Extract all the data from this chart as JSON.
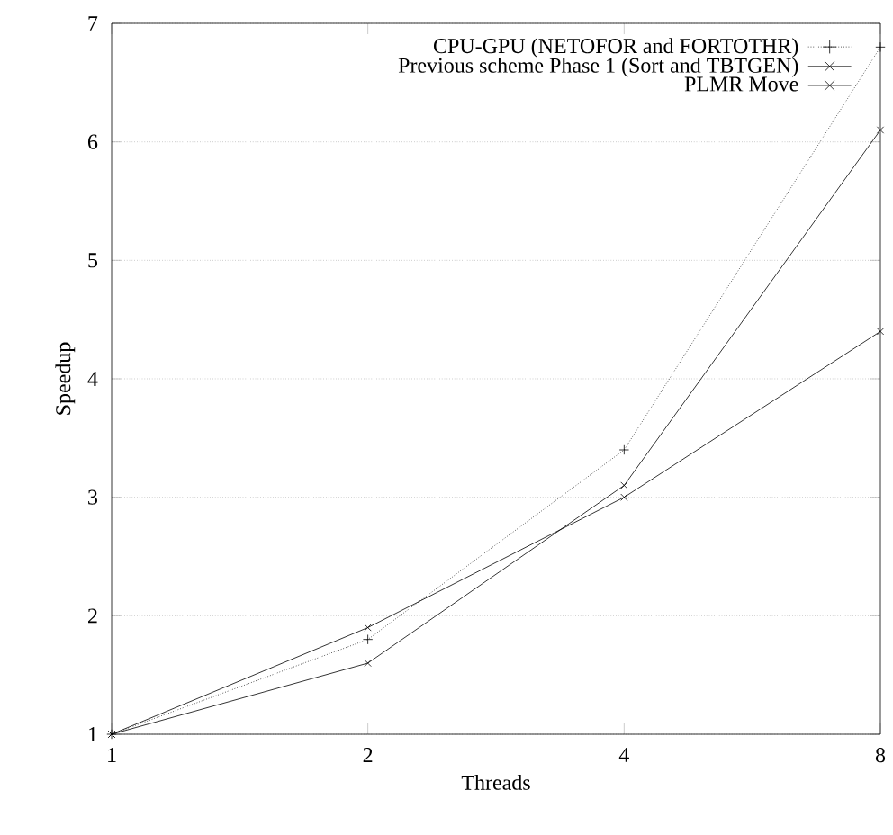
{
  "chart_data": {
    "type": "line",
    "xlabel": "Threads",
    "ylabel": "Speedup",
    "x": [
      1,
      2,
      4,
      8
    ],
    "log": "x",
    "xlim": [
      1,
      8
    ],
    "ylim": [
      1,
      7
    ],
    "xticks": [
      1,
      2,
      4,
      8
    ],
    "yticks": [
      1,
      2,
      3,
      4,
      5,
      6,
      7
    ],
    "grid": "y",
    "legend": "top right",
    "series": [
      {
        "name": "CPU-GPU (NETOFOR and FORTOTHR)",
        "color": "#000000",
        "values": [
          1,
          1.8,
          3.4,
          6.8
        ],
        "marker": "plus",
        "line_style": "dotted"
      },
      {
        "name": "Previous scheme Phase 1 (Sort and TBTGEN)",
        "color": "#000000",
        "values": [
          1,
          1.6,
          3.1,
          6.1
        ],
        "marker": "cross",
        "line_style": "solid"
      },
      {
        "name": "PLMR Move",
        "color": "#000000",
        "values": [
          1,
          1.9,
          3.0,
          4.4
        ],
        "marker": "cross",
        "line_style": "solid"
      }
    ]
  }
}
